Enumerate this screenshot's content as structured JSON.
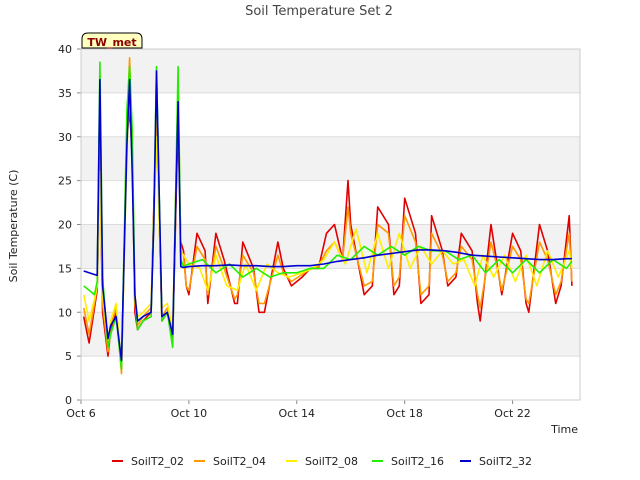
{
  "chart_data": {
    "type": "line",
    "title": "Soil Temperature Set 2",
    "xlabel": "Time",
    "ylabel": "Soil Temperature (C)",
    "badge": "TW_met",
    "xlim": [
      6,
      24.5
    ],
    "ylim": [
      0,
      40
    ],
    "yticks": [
      0,
      5,
      10,
      15,
      20,
      25,
      30,
      35,
      40
    ],
    "xticks": [
      {
        "value": 6,
        "label": "Oct 6"
      },
      {
        "value": 10,
        "label": "Oct 10"
      },
      {
        "value": 14,
        "label": "Oct 14"
      },
      {
        "value": 18,
        "label": "Oct 18"
      },
      {
        "value": 22,
        "label": "Oct 22"
      }
    ],
    "grid": true,
    "legend_position": "bottom",
    "series": [
      {
        "name": "SoilT2_02",
        "color": "#e00000",
        "x": [
          6.1,
          6.3,
          6.5,
          6.6,
          6.7,
          6.8,
          7.0,
          7.1,
          7.2,
          7.3,
          7.5,
          7.7,
          7.8,
          7.9,
          8.0,
          8.1,
          8.3,
          8.6,
          8.7,
          8.8,
          9.0,
          9.2,
          9.4,
          9.6,
          9.7,
          9.8,
          9.9,
          10.0,
          10.3,
          10.6,
          10.7,
          11.0,
          11.3,
          11.7,
          11.8,
          12.0,
          12.4,
          12.6,
          12.8,
          13.3,
          13.5,
          13.8,
          14.2,
          14.5,
          14.8,
          15.1,
          15.4,
          15.7,
          15.9,
          16.0,
          16.5,
          16.8,
          17.0,
          17.4,
          17.6,
          17.8,
          18.0,
          18.4,
          18.6,
          18.9,
          19.0,
          19.4,
          19.6,
          19.9,
          20.1,
          20.5,
          20.7,
          20.8,
          21.2,
          21.4,
          21.6,
          22.0,
          22.3,
          22.5,
          22.6,
          23.0,
          23.3,
          23.6,
          23.8,
          24.1,
          24.2
        ],
        "y": [
          9.5,
          6.5,
          10.5,
          12.5,
          27,
          10,
          5,
          8,
          9,
          10,
          3.5,
          30,
          33,
          28,
          10,
          8,
          9,
          10,
          22,
          33,
          9,
          10,
          7,
          32,
          18,
          17,
          13,
          12,
          19,
          17,
          11,
          19,
          16,
          11,
          11,
          18,
          15,
          10,
          10,
          18,
          15,
          13,
          14,
          15,
          15,
          19,
          20,
          16,
          25,
          20,
          12,
          13,
          22,
          20,
          12,
          13,
          23,
          19,
          11,
          12,
          21,
          17,
          13,
          14,
          19,
          17,
          11,
          9,
          20,
          16,
          12,
          19,
          17,
          11,
          10,
          20,
          17,
          11,
          13,
          21,
          13
        ]
      },
      {
        "name": "SoilT2_04",
        "color": "#ff9900",
        "x": [
          6.1,
          6.3,
          6.5,
          6.6,
          6.7,
          6.8,
          7.0,
          7.1,
          7.2,
          7.3,
          7.5,
          7.7,
          7.8,
          7.9,
          8.0,
          8.1,
          8.3,
          8.6,
          8.7,
          8.8,
          9.0,
          9.2,
          9.4,
          9.6,
          9.7,
          9.8,
          9.9,
          10.0,
          10.3,
          10.6,
          10.7,
          11.0,
          11.3,
          11.7,
          11.8,
          12.0,
          12.4,
          12.6,
          12.8,
          13.3,
          13.5,
          13.8,
          14.2,
          14.5,
          14.8,
          15.1,
          15.4,
          15.7,
          15.9,
          16.0,
          16.5,
          16.8,
          17.0,
          17.4,
          17.6,
          17.8,
          18.0,
          18.4,
          18.6,
          18.9,
          19.0,
          19.4,
          19.6,
          19.9,
          20.1,
          20.5,
          20.7,
          20.8,
          21.2,
          21.4,
          21.6,
          22.0,
          22.3,
          22.5,
          22.6,
          23.0,
          23.3,
          23.6,
          23.8,
          24.1,
          24.2
        ],
        "y": [
          10.5,
          7.5,
          11,
          13,
          29,
          11,
          5.5,
          8.5,
          9.5,
          10.5,
          3,
          31,
          39,
          29,
          11,
          8.5,
          9.5,
          10.5,
          21,
          32,
          9.5,
          10.5,
          7.5,
          36,
          17,
          16.5,
          13,
          12.5,
          17.5,
          16,
          12,
          17.5,
          15,
          11.5,
          12,
          16.5,
          14.5,
          11,
          11,
          16.5,
          14.5,
          13.5,
          14.3,
          15,
          15.2,
          17,
          18,
          16,
          22,
          19,
          13,
          13.5,
          20,
          19,
          13,
          14,
          21,
          18,
          12,
          13,
          19,
          16.5,
          13.5,
          14.5,
          17.5,
          16,
          12,
          10.5,
          18,
          15.5,
          12.5,
          17.5,
          16,
          11.5,
          11,
          18,
          16,
          12,
          13.5,
          19,
          13.5
        ]
      },
      {
        "name": "SoilT2_08",
        "color": "#ffee00",
        "x": [
          6.1,
          6.3,
          6.5,
          6.6,
          6.7,
          6.8,
          7.0,
          7.1,
          7.2,
          7.3,
          7.5,
          7.7,
          7.8,
          7.9,
          8.0,
          8.1,
          8.3,
          8.6,
          8.7,
          8.8,
          9.0,
          9.2,
          9.4,
          9.6,
          9.7,
          9.8,
          10.0,
          10.4,
          10.7,
          11.0,
          11.4,
          11.8,
          12.1,
          12.5,
          12.9,
          13.3,
          13.7,
          14.2,
          14.6,
          15.0,
          15.4,
          15.8,
          16.2,
          16.6,
          17.0,
          17.4,
          17.8,
          18.2,
          18.6,
          19.0,
          19.4,
          19.8,
          20.2,
          20.6,
          20.9,
          21.3,
          21.7,
          22.1,
          22.5,
          22.9,
          23.3,
          23.7,
          24.1,
          24.2
        ],
        "y": [
          12,
          9,
          11.5,
          13,
          26,
          12,
          6.5,
          9,
          10,
          11,
          4,
          28,
          36,
          27,
          12,
          9.5,
          10,
          11,
          20,
          30,
          10.5,
          11,
          8,
          34,
          17,
          16.5,
          15.5,
          15,
          12.5,
          16.5,
          13,
          12.5,
          15.5,
          12.5,
          15.5,
          14.5,
          14,
          14.5,
          15,
          16,
          18,
          15.5,
          19.5,
          14.5,
          19,
          15,
          19,
          15,
          17.5,
          15.5,
          17,
          15.5,
          16,
          13,
          16.5,
          14,
          16.5,
          13.5,
          16.5,
          13,
          17,
          14,
          17,
          15
        ]
      },
      {
        "name": "SoilT2_16",
        "color": "#22ee00",
        "x": [
          6.1,
          6.3,
          6.5,
          6.6,
          6.7,
          6.8,
          7.0,
          7.1,
          7.2,
          7.3,
          7.5,
          7.7,
          7.8,
          7.9,
          8.0,
          8.1,
          8.3,
          8.6,
          8.7,
          8.8,
          9.0,
          9.2,
          9.4,
          9.6,
          9.7,
          9.8,
          10.0,
          10.5,
          11.0,
          11.5,
          12.0,
          12.5,
          13.0,
          13.5,
          14.0,
          14.5,
          15.0,
          15.5,
          16.0,
          16.5,
          17.0,
          17.5,
          18.0,
          18.5,
          19.0,
          19.5,
          20.0,
          20.5,
          21.0,
          21.5,
          22.0,
          22.5,
          23.0,
          23.5,
          24.0,
          24.2
        ],
        "y": [
          13,
          12.5,
          12,
          13.5,
          38.5,
          14,
          6,
          7.5,
          8.5,
          9.5,
          3.5,
          33,
          38,
          31,
          12,
          8,
          9,
          9.5,
          21,
          38,
          9,
          10,
          6,
          38,
          16,
          15.2,
          15.5,
          16,
          14.5,
          15.5,
          14,
          15,
          14,
          14.5,
          14.5,
          15,
          15,
          16.5,
          16,
          17.5,
          16.5,
          17.5,
          16.5,
          17.5,
          17,
          17,
          16,
          16.5,
          14.5,
          16,
          14.5,
          16,
          14.5,
          16,
          15,
          15.8
        ]
      },
      {
        "name": "SoilT2_32",
        "color": "#0000cc",
        "x": [
          6.1,
          6.3,
          6.5,
          6.6,
          6.7,
          6.8,
          7.0,
          7.1,
          7.2,
          7.3,
          7.5,
          7.7,
          7.8,
          7.9,
          8.0,
          8.1,
          8.3,
          8.6,
          8.7,
          8.8,
          9.0,
          9.2,
          9.4,
          9.6,
          9.7,
          9.8,
          10.0,
          10.5,
          11.0,
          11.5,
          12.0,
          12.5,
          13.0,
          13.5,
          14.0,
          14.5,
          15.0,
          15.5,
          16.0,
          16.5,
          17.0,
          17.5,
          18.0,
          18.5,
          19.0,
          19.5,
          20.0,
          20.5,
          21.0,
          21.5,
          22.0,
          22.5,
          23.0,
          23.5,
          24.0,
          24.2
        ],
        "y": [
          14.7,
          14.5,
          14.3,
          14.2,
          36.5,
          13,
          7,
          8.5,
          9,
          9.5,
          4.5,
          29,
          36.5,
          26,
          12,
          9,
          9.5,
          10,
          20,
          37.5,
          9.5,
          10,
          7.5,
          34,
          15.2,
          15.1,
          15.2,
          15.3,
          15.3,
          15.4,
          15.3,
          15.3,
          15.2,
          15.2,
          15.3,
          15.3,
          15.5,
          15.8,
          16,
          16.2,
          16.5,
          16.7,
          16.9,
          17.1,
          17.1,
          17,
          16.8,
          16.5,
          16.4,
          16.3,
          16.2,
          16.1,
          16,
          16,
          16.1,
          16.1
        ]
      }
    ]
  }
}
